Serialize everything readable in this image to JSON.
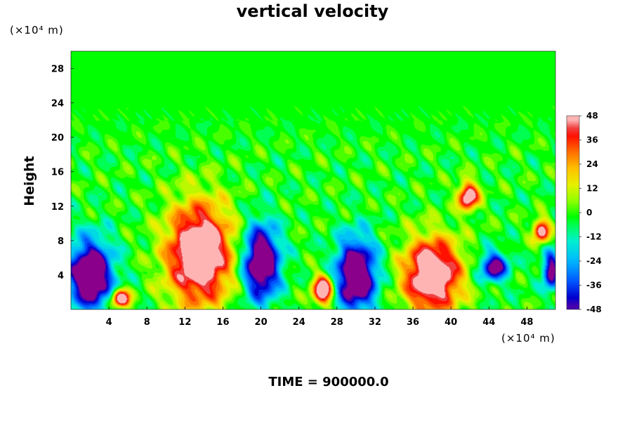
{
  "chart_data": {
    "type": "heatmap",
    "title": "vertical velocity",
    "xlabel": "",
    "ylabel": "Height",
    "x_unit": "(×10⁴ m)",
    "y_unit": "(×10⁴ m)",
    "xlim": [
      0,
      51
    ],
    "ylim": [
      0,
      30
    ],
    "xticks": [
      4,
      8,
      12,
      16,
      20,
      24,
      28,
      32,
      36,
      40,
      44,
      48
    ],
    "yticks": [
      4,
      8,
      12,
      16,
      20,
      24,
      28
    ],
    "colorbar": {
      "range": [
        -48,
        48
      ],
      "step": 4,
      "ticks": [
        48,
        36,
        24,
        12,
        0,
        -12,
        -24,
        -36,
        -48
      ]
    },
    "features": [
      {
        "kind": "updraft",
        "x": 13.5,
        "y": 6.5,
        "rx": 3.2,
        "ry": 5.5,
        "peak": 48
      },
      {
        "kind": "updraft",
        "x": 38.0,
        "y": 4.0,
        "rx": 2.8,
        "ry": 4.0,
        "peak": 48
      },
      {
        "kind": "updraft",
        "x": 26.5,
        "y": 2.3,
        "rx": 1.0,
        "ry": 1.6,
        "peak": 46
      },
      {
        "kind": "updraft",
        "x": 5.2,
        "y": 1.3,
        "rx": 0.9,
        "ry": 1.0,
        "peak": 46
      },
      {
        "kind": "updraft",
        "x": 41.8,
        "y": 13.2,
        "rx": 1.0,
        "ry": 1.5,
        "peak": 42
      },
      {
        "kind": "updraft",
        "x": 49.5,
        "y": 9.2,
        "rx": 0.8,
        "ry": 1.2,
        "peak": 40
      },
      {
        "kind": "downdraft",
        "x": 2.0,
        "y": 4.0,
        "rx": 2.2,
        "ry": 3.8,
        "peak": -48
      },
      {
        "kind": "downdraft",
        "x": 20.0,
        "y": 5.5,
        "rx": 1.8,
        "ry": 4.0,
        "peak": -48
      },
      {
        "kind": "downdraft",
        "x": 30.0,
        "y": 4.0,
        "rx": 2.0,
        "ry": 4.0,
        "peak": -48
      },
      {
        "kind": "downdraft",
        "x": 44.5,
        "y": 5.0,
        "rx": 1.4,
        "ry": 1.6,
        "peak": -36
      },
      {
        "kind": "downdraft",
        "x": 50.5,
        "y": 4.5,
        "rx": 0.8,
        "ry": 2.0,
        "peak": -38
      }
    ],
    "time_label": "TIME = 900000.0"
  }
}
